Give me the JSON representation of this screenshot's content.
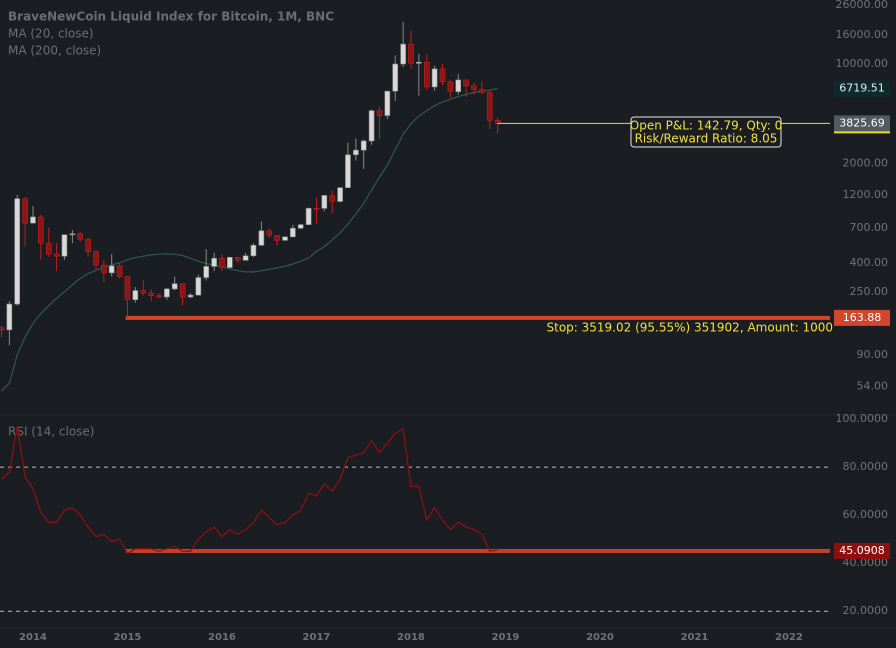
{
  "chart_data": [
    {
      "type": "candlestick",
      "title": "BraveNewCoin Liquid Index for Bitcoin, 1M, BNC",
      "log_scale": true,
      "x": [
        2013.667,
        2013.75,
        2013.833,
        2013.917,
        2014,
        2014.083,
        2014.167,
        2014.25,
        2014.333,
        2014.417,
        2014.5,
        2014.583,
        2014.667,
        2014.75,
        2014.833,
        2014.917,
        2015,
        2015.083,
        2015.167,
        2015.25,
        2015.333,
        2015.417,
        2015.5,
        2015.583,
        2015.667,
        2015.75,
        2015.833,
        2015.917,
        2016,
        2016.083,
        2016.167,
        2016.25,
        2016.333,
        2016.417,
        2016.5,
        2016.583,
        2016.667,
        2016.75,
        2016.833,
        2016.917,
        2017,
        2017.083,
        2017.167,
        2017.25,
        2017.333,
        2017.417,
        2017.5,
        2017.583,
        2017.667,
        2017.75,
        2017.833,
        2017.917,
        2018,
        2018.083,
        2018.167,
        2018.25,
        2018.333,
        2018.417,
        2018.5,
        2018.583,
        2018.667,
        2018.75,
        2018.833,
        2018.917
      ],
      "open": [
        140,
        135,
        205,
        1130,
        760,
        840,
        550,
        460,
        445,
        630,
        640,
        585,
        480,
        385,
        340,
        380,
        320,
        220,
        255,
        245,
        235,
        230,
        262,
        285,
        230,
        237,
        315,
        377,
        430,
        370,
        437,
        416,
        448,
        531,
        672,
        624,
        575,
        609,
        700,
        742,
        966,
        965,
        1190,
        1080,
        1350,
        2300,
        2480,
        2875,
        4700,
        4340,
        6440,
        10000,
        13800,
        10100,
        10300,
        6900,
        9250,
        7500,
        6390,
        7730,
        7030,
        6610,
        6310,
        4020
      ],
      "high": [
        145,
        215,
        1200,
        1160,
        1000,
        870,
        710,
        550,
        630,
        680,
        660,
        600,
        490,
        420,
        460,
        400,
        320,
        270,
        300,
        260,
        245,
        265,
        320,
        285,
        245,
        330,
        500,
        470,
        460,
        440,
        440,
        470,
        550,
        780,
        700,
        625,
        615,
        740,
        750,
        980,
        1150,
        1200,
        1290,
        1350,
        2800,
        3000,
        2950,
        4800,
        5000,
        6450,
        11500,
        19800,
        17200,
        11800,
        11700,
        9700,
        10000,
        7750,
        8500,
        7760,
        7400,
        7500,
        6570,
        4200
      ],
      "low": [
        120,
        105,
        200,
        520,
        760,
        420,
        440,
        350,
        420,
        550,
        560,
        440,
        360,
        290,
        320,
        310,
        165,
        210,
        235,
        215,
        225,
        220,
        255,
        200,
        225,
        235,
        300,
        350,
        350,
        365,
        400,
        415,
        440,
        525,
        600,
        530,
        570,
        605,
        690,
        740,
        750,
        920,
        890,
        1060,
        1350,
        2100,
        1830,
        2700,
        2950,
        4110,
        5500,
        9500,
        9200,
        6000,
        6600,
        6500,
        7050,
        5800,
        6100,
        5880,
        6120,
        6170,
        3500,
        3250
      ],
      "close": [
        135,
        205,
        1130,
        760,
        840,
        550,
        460,
        445,
        630,
        640,
        585,
        480,
        385,
        340,
        380,
        320,
        220,
        255,
        245,
        235,
        230,
        262,
        285,
        230,
        237,
        315,
        377,
        430,
        370,
        437,
        416,
        448,
        531,
        672,
        624,
        575,
        609,
        700,
        742,
        966,
        965,
        1190,
        1080,
        1350,
        2300,
        2480,
        2875,
        4700,
        4340,
        6440,
        10000,
        13800,
        10100,
        10300,
        6900,
        9250,
        7500,
        6390,
        7730,
        7030,
        6610,
        6310,
        4020,
        3825.69
      ],
      "up_color": "#d8d8d8",
      "down_color": "#8e1515",
      "series": [
        {
          "name": "MA (20, close)",
          "color": "#2e5a55",
          "values": [
            50,
            57,
            90,
            120,
            150,
            175,
            200,
            225,
            250,
            280,
            310,
            335,
            355,
            370,
            385,
            400,
            420,
            435,
            445,
            455,
            460,
            462,
            460,
            450,
            430,
            410,
            395,
            385,
            375,
            362,
            352,
            345,
            345,
            352,
            360,
            368,
            378,
            392,
            410,
            432,
            480,
            520,
            580,
            650,
            750,
            880,
            1050,
            1300,
            1600,
            1950,
            2500,
            3200,
            3800,
            4300,
            4700,
            5100,
            5400,
            5650,
            5900,
            6100,
            6300,
            6450,
            6550,
            6719.51
          ]
        },
        {
          "name": "MA (200, close)",
          "color": "#2e6a8a",
          "values": [
            null,
            null,
            null,
            null,
            null,
            null,
            null,
            null,
            null,
            null,
            null,
            null,
            null,
            null,
            null,
            null,
            null,
            null,
            null,
            null,
            null,
            null,
            null,
            null,
            null,
            null,
            null,
            null,
            null,
            null,
            null,
            null,
            null,
            null,
            null,
            null,
            null,
            null,
            null,
            null,
            null,
            null,
            null,
            null,
            null,
            null,
            null,
            null,
            null,
            null,
            null,
            null,
            null,
            null,
            null,
            null,
            null,
            null,
            null,
            null,
            null,
            null,
            null,
            null
          ]
        }
      ],
      "ylim": [
        34,
        28200
      ],
      "yticks": [
        {
          "value": 26000,
          "label": "26000.00"
        },
        {
          "value": 16000,
          "label": "16000.00"
        },
        {
          "value": 10000,
          "label": "10000.00"
        },
        {
          "value": 2000,
          "label": "2000.00"
        },
        {
          "value": 1200,
          "label": "1200.00"
        },
        {
          "value": 700,
          "label": "700.00"
        },
        {
          "value": 400,
          "label": "400.00"
        },
        {
          "value": 250,
          "label": "250.00"
        },
        {
          "value": 90,
          "label": "90.00"
        },
        {
          "value": 54,
          "label": "54.00"
        }
      ],
      "xlim": [
        2013.651,
        2022.434
      ],
      "xticks": [
        2014,
        2015,
        2016,
        2017,
        2018,
        2019,
        2020,
        2021,
        2022
      ],
      "stop_line": {
        "value": 163.88,
        "x_start": 2014.98,
        "color": "#d2462c"
      },
      "annotations": [
        "Open P&L: 142.79, Qty: 0",
        "Risk/Reward Ratio: 8.05",
        "Stop: 3519.02 (95.55%) 351902, Amount: 1000"
      ]
    },
    {
      "type": "line",
      "title": "RSI (14, close)",
      "color": "#8e1010",
      "values": [
        75,
        78,
        97,
        76,
        71,
        61,
        57,
        57,
        62,
        63,
        60,
        55,
        51,
        52,
        49,
        50,
        44,
        46,
        46,
        46,
        45,
        46,
        47,
        45,
        45,
        50,
        53,
        55,
        51,
        54,
        52,
        54,
        57,
        62,
        59,
        56,
        57,
        60,
        62,
        69,
        68,
        73,
        70,
        75,
        84,
        85,
        86,
        91,
        86,
        90,
        94,
        96,
        72,
        72,
        58,
        63,
        58,
        54,
        57,
        55,
        54,
        52,
        45,
        45.5
      ],
      "ylim": [
        13,
        101.7
      ],
      "yticks": [
        {
          "value": 100,
          "label": "100.0000"
        },
        {
          "value": 80,
          "label": "80.0000"
        },
        {
          "value": 60,
          "label": "60.0000"
        },
        {
          "value": 40,
          "label": "40.0000"
        },
        {
          "value": 20,
          "label": "20.0000"
        }
      ],
      "dashed_levels": [
        80,
        20
      ],
      "level_line": {
        "value": 45.0908,
        "x_start": 2014.98,
        "color": "#c8402a"
      }
    }
  ]
}
